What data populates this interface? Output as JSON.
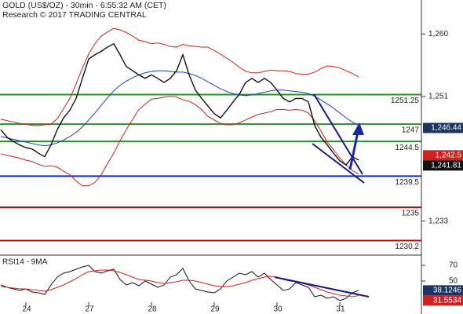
{
  "chart_data": {
    "type": "line",
    "title": "GOLD (US$/OZ) - 30min - 6:55:32 AM (CET)",
    "subtitle": "Research © 2017 TRADING CENTRAL",
    "categories": [
      null,
      null,
      null,
      null,
      "24",
      null,
      null,
      null,
      null,
      null,
      null,
      null,
      null,
      null,
      "27",
      null,
      null,
      null,
      null,
      null,
      null,
      null,
      null,
      null,
      "28",
      null,
      null,
      null,
      null,
      null,
      null,
      null,
      null,
      null,
      "29",
      null,
      null,
      null,
      null,
      null,
      null,
      null,
      null,
      null,
      "30",
      null,
      null,
      null,
      null,
      null,
      null,
      null,
      null,
      null,
      "31",
      null,
      null,
      null
    ],
    "ylim": [
      1228.1,
      1264.9
    ],
    "yticks": [
      {
        "value": 1260,
        "label": "1,260"
      },
      {
        "value": 1251,
        "label": "1,251"
      },
      {
        "value": 1233,
        "label": "1,233"
      }
    ],
    "series": [
      {
        "color": "#d02020",
        "values": [
          1247.7,
          1247.5,
          1247.3,
          1247.1,
          1247.0,
          1246.8,
          1246.8,
          1246.9,
          1247.0,
          1247.8,
          1249.2,
          1250.7,
          1252.8,
          1255.1,
          1257.1,
          1258.6,
          1259.7,
          1260.3,
          1260.8,
          1260.6,
          1260.2,
          1259.7,
          1259.1,
          1258.9,
          1258.6,
          1258.7,
          1258.5,
          1258.2,
          1258.1,
          1258.5,
          1258.3,
          1258.2,
          1258.1,
          1258.1,
          1257.6,
          1257.1,
          1256.5,
          1255.9,
          1255.2,
          1254.6,
          1254.4,
          1254.4,
          1254.6,
          1254.8,
          1254.7,
          1254.7,
          1254.6,
          1254.3,
          1254.2,
          1254.2,
          1254.5,
          1255.0,
          1255.4,
          1255.3,
          1255.1,
          1254.7,
          1254.3,
          1253.8
        ]
      },
      {
        "color": "#d02020",
        "values": [
          1242.7,
          1242.5,
          1242.3,
          1242.1,
          1241.8,
          1241.6,
          1241.2,
          1240.9,
          1241.0,
          1240.8,
          1240.2,
          1239.7,
          1238.8,
          1238.1,
          1238.1,
          1238.6,
          1239.7,
          1241.3,
          1242.8,
          1244.6,
          1246.2,
          1247.7,
          1249.1,
          1249.9,
          1250.6,
          1250.7,
          1250.9,
          1251.0,
          1250.9,
          1250.5,
          1250.3,
          1249.8,
          1249.1,
          1248.1,
          1247.6,
          1247.1,
          1246.9,
          1246.9,
          1247.2,
          1247.6,
          1248.0,
          1248.4,
          1248.6,
          1248.8,
          1249.1,
          1249.1,
          1249.0,
          1249.1,
          1249.0,
          1248.6,
          1247.5,
          1246.0,
          1244.4,
          1243.3,
          1242.1,
          1241.1,
          1240.3,
          1239.8
        ]
      },
      {
        "color": "#2040c0",
        "values": [
          1245.2,
          1245.0,
          1244.8,
          1244.6,
          1244.4,
          1244.2,
          1244.0,
          1243.9,
          1244.0,
          1244.3,
          1244.7,
          1245.2,
          1245.8,
          1246.6,
          1247.6,
          1248.6,
          1249.7,
          1250.8,
          1251.8,
          1252.6,
          1253.2,
          1253.7,
          1254.1,
          1254.4,
          1254.6,
          1254.7,
          1254.7,
          1254.6,
          1254.5,
          1254.5,
          1254.3,
          1254.0,
          1253.6,
          1253.1,
          1252.6,
          1252.1,
          1251.7,
          1251.4,
          1251.2,
          1251.1,
          1251.2,
          1251.4,
          1251.6,
          1251.8,
          1251.9,
          1251.9,
          1251.8,
          1251.7,
          1251.6,
          1251.4,
          1251.0,
          1250.5,
          1249.9,
          1249.3,
          1248.6,
          1247.9,
          1247.3,
          1246.8
        ]
      },
      {
        "color": "#111111",
        "values": [
          1246.2,
          1245.1,
          1244.5,
          1244.0,
          1243.6,
          1243.4,
          1242.8,
          1242.3,
          1244.0,
          1246.2,
          1247.9,
          1249.0,
          1250.7,
          1253.6,
          1256.4,
          1257.0,
          1257.5,
          1258.1,
          1258.6,
          1257.0,
          1255.3,
          1254.7,
          1254.1,
          1253.6,
          1254.1,
          1253.6,
          1253.0,
          1253.6,
          1254.7,
          1257.0,
          1254.1,
          1251.9,
          1250.7,
          1249.6,
          1248.5,
          1247.9,
          1249.0,
          1250.2,
          1251.3,
          1253.0,
          1253.6,
          1253.0,
          1253.6,
          1253.0,
          1251.9,
          1250.7,
          1250.2,
          1250.7,
          1250.7,
          1250.2,
          1246.8,
          1245.1,
          1244.0,
          1242.8,
          1241.7,
          1241.1,
          1242.3,
          1241.81
        ]
      }
    ],
    "levels": [
      {
        "value": 1251.25,
        "color": "#2e8b2e"
      },
      {
        "value": 1247,
        "color": "#2e8b2e"
      },
      {
        "value": 1244.5,
        "color": "#2e8b2e"
      },
      {
        "value": 1239.5,
        "color": "#1030a0"
      },
      {
        "value": 1235,
        "color": "#c00000"
      },
      {
        "value": 1230.2,
        "color": "#c00000"
      }
    ],
    "price_tags": [
      {
        "value": 1246.44,
        "label": "1,246.44",
        "color": "#1c3560"
      },
      {
        "value": 1242.5,
        "label": "1,242.5",
        "color": "#d02020"
      },
      {
        "value": 1241.81,
        "label": "1,241.81",
        "color": "#111111"
      }
    ],
    "indicator": {
      "label": "RSI14 - 9MA",
      "ylim": [
        8,
        80
      ],
      "yticks": [
        70,
        50
      ],
      "series": [
        {
          "color": "#111111",
          "values": [
            45,
            42,
            40,
            38,
            40,
            36,
            35,
            33,
            45,
            55,
            60,
            62,
            65,
            68,
            70,
            62,
            60,
            63,
            65,
            52,
            45,
            48,
            44,
            50,
            46,
            42,
            45,
            55,
            58,
            66,
            50,
            40,
            38,
            36,
            35,
            40,
            50,
            55,
            60,
            58,
            62,
            55,
            60,
            52,
            45,
            38,
            40,
            48,
            45,
            42,
            30,
            32,
            28,
            30,
            25,
            28,
            35,
            38.1246
          ]
        },
        {
          "color": "#d02020",
          "values": [
            43,
            42,
            41,
            40,
            40,
            39,
            38,
            37,
            39,
            42,
            45,
            49,
            53,
            58,
            62,
            63,
            64,
            64,
            63,
            61,
            58,
            55,
            52,
            51,
            50,
            48,
            47,
            48,
            49,
            51,
            51,
            50,
            48,
            46,
            44,
            43,
            43,
            44,
            46,
            48,
            51,
            53,
            55,
            56,
            55,
            52,
            50,
            49,
            47,
            45,
            42,
            39,
            36,
            34,
            32,
            31,
            30,
            31.5534
          ]
        }
      ],
      "price_tags": [
        {
          "value": 38.1246,
          "color": "#1c3560"
        },
        {
          "value": 31.5534,
          "color": "#d02020"
        }
      ]
    }
  }
}
